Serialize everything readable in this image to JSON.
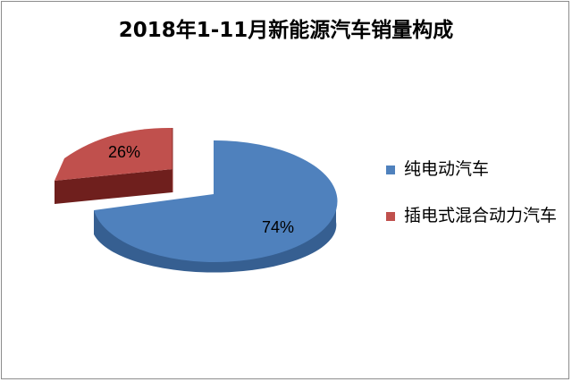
{
  "chart_data": {
    "type": "pie",
    "title": "2018年1-11月新能源汽车销量构成",
    "slices": [
      {
        "label": "纯电动汽车",
        "value": 74,
        "value_label": "74%",
        "color": "#4f81bd",
        "side_color": "#365f91"
      },
      {
        "label": "插电式混合动力汽车",
        "value": 26,
        "value_label": "26%",
        "color": "#c0504d",
        "side_color": "#6f1f1d"
      }
    ],
    "legend_position": "right",
    "style": "3d-exploded"
  }
}
